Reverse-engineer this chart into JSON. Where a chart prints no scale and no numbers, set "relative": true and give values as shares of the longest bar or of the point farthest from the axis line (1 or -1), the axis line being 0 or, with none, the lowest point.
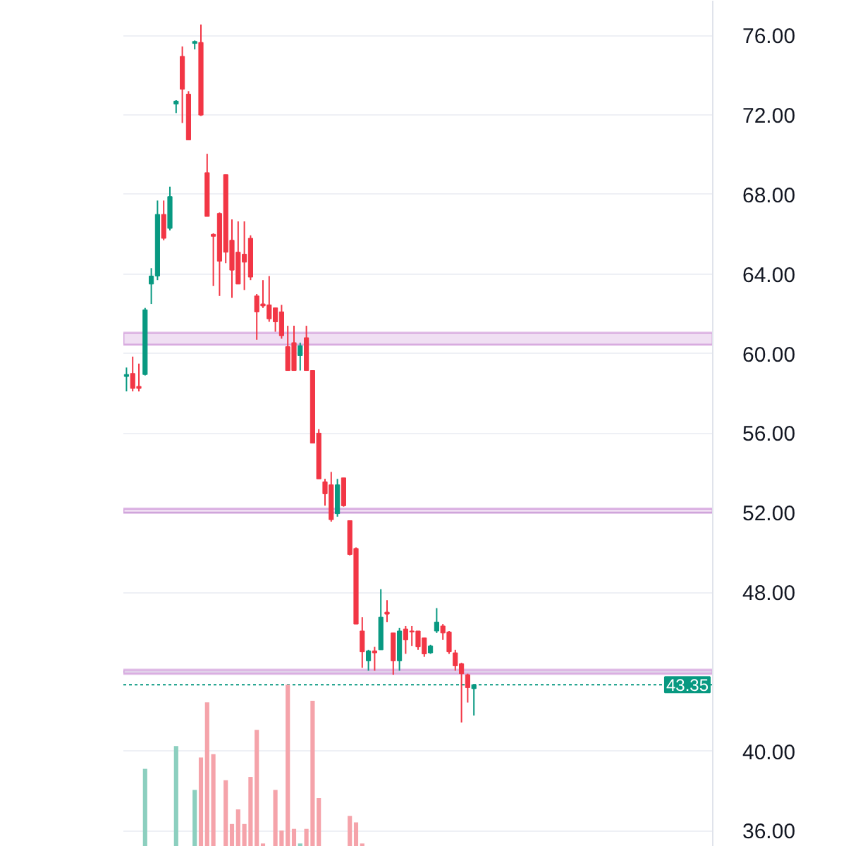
{
  "chart_data": [
    {
      "type": "candlestick",
      "categories": [
        null,
        null,
        null,
        null,
        null,
        null,
        null,
        null,
        null,
        null,
        null,
        null,
        null,
        null,
        null,
        null,
        null,
        null,
        null,
        null,
        null,
        null,
        null,
        null,
        null,
        null,
        null,
        null,
        null,
        null,
        null,
        null,
        null,
        null,
        null,
        null,
        null,
        null,
        null,
        null,
        null,
        null,
        null,
        null,
        null,
        null,
        null,
        null,
        null,
        null,
        null,
        null,
        null,
        null,
        null,
        null,
        null,
        null,
        null,
        null,
        null,
        null,
        null,
        null,
        null,
        null,
        null,
        null,
        null,
        null,
        null,
        null,
        null,
        null,
        null,
        null,
        null,
        null,
        null,
        null,
        null,
        null,
        null,
        null,
        null,
        null,
        null,
        null,
        null,
        null,
        null,
        null,
        null,
        null,
        null
      ],
      "ohlc": [
        [
          58.85,
          59.3,
          58.1,
          58.95
        ],
        [
          59.0,
          59.85,
          58.1,
          58.25
        ],
        [
          58.35,
          59.5,
          58.1,
          58.25
        ],
        [
          58.95,
          62.3,
          58.9,
          62.2
        ],
        [
          63.5,
          64.3,
          62.5,
          63.9
        ],
        [
          63.9,
          67.7,
          63.7,
          67.0
        ],
        [
          67.0,
          67.7,
          65.7,
          65.8
        ],
        [
          66.3,
          68.4,
          66.2,
          67.9
        ],
        [
          72.55,
          72.75,
          72.1,
          72.7
        ],
        [
          74.95,
          75.45,
          71.6,
          73.3
        ],
        [
          73.05,
          73.2,
          70.75,
          70.75
        ],
        [
          75.6,
          75.75,
          75.3,
          75.7
        ],
        [
          75.65,
          76.55,
          71.95,
          72.0
        ],
        [
          69.1,
          70.05,
          66.9,
          66.9
        ],
        [
          66.0,
          66.05,
          63.4,
          65.9
        ],
        [
          67.05,
          67.1,
          62.9,
          64.65
        ],
        [
          69.0,
          69.0,
          64.55,
          65.1
        ],
        [
          65.7,
          66.75,
          62.8,
          64.2
        ],
        [
          65.1,
          66.65,
          63.5,
          63.5
        ],
        [
          65.0,
          66.65,
          63.2,
          64.6
        ],
        [
          65.8,
          65.95,
          63.7,
          63.85
        ],
        [
          62.9,
          63.0,
          60.7,
          62.1
        ],
        [
          62.5,
          63.7,
          62.3,
          62.4
        ],
        [
          62.45,
          63.9,
          61.6,
          61.75
        ],
        [
          62.3,
          62.3,
          61.1,
          61.6
        ],
        [
          62.1,
          62.45,
          60.75,
          60.9
        ],
        [
          60.35,
          61.4,
          59.15,
          59.15
        ],
        [
          60.55,
          61.4,
          59.15,
          59.15
        ],
        [
          59.9,
          60.55,
          59.15,
          60.4
        ],
        [
          60.8,
          61.4,
          59.15,
          59.15
        ],
        [
          59.15,
          59.15,
          55.5,
          55.5
        ],
        [
          56.0,
          56.2,
          53.7,
          53.7
        ],
        [
          53.55,
          53.7,
          52.35,
          52.95
        ],
        [
          53.4,
          54.05,
          51.55,
          51.65
        ],
        [
          51.95,
          53.7,
          51.8,
          53.4
        ],
        [
          53.75,
          53.75,
          52.3,
          52.35
        ],
        [
          51.6,
          51.6,
          49.85,
          49.9
        ],
        [
          50.2,
          50.25,
          46.4,
          46.4
        ],
        [
          46.05,
          46.75,
          44.2,
          45.0
        ],
        [
          44.55,
          45.1,
          44.05,
          45.05
        ],
        [
          45.05,
          45.25,
          44.05,
          44.95
        ],
        [
          45.1,
          48.15,
          45.1,
          46.75
        ],
        [
          47.0,
          47.6,
          46.5,
          46.9
        ],
        [
          45.95,
          45.95,
          43.85,
          44.55
        ],
        [
          44.55,
          46.2,
          44.05,
          46.05
        ],
        [
          46.15,
          46.3,
          44.9,
          45.6
        ],
        [
          46.05,
          46.3,
          45.3,
          46.0
        ],
        [
          46.05,
          46.05,
          45.1,
          45.25
        ],
        [
          45.7,
          45.7,
          44.75,
          44.9
        ],
        [
          44.95,
          45.35,
          44.9,
          45.3
        ],
        [
          46.05,
          47.2,
          45.95,
          46.5
        ],
        [
          46.3,
          46.4,
          45.6,
          45.95
        ],
        [
          46.0,
          46.05,
          44.9,
          45.0
        ],
        [
          44.95,
          45.1,
          44.05,
          44.3
        ],
        [
          44.4,
          44.45,
          41.45,
          43.9
        ],
        [
          43.85,
          43.9,
          42.45,
          43.2
        ],
        [
          43.15,
          43.35,
          41.8,
          43.35
        ],
        null,
        null,
        null,
        null,
        null,
        null,
        null,
        null,
        null,
        null,
        null,
        null,
        null,
        null,
        null,
        null,
        null,
        null,
        null,
        null,
        null,
        null,
        null,
        null,
        null,
        null,
        null,
        null,
        null,
        null,
        null,
        null,
        null,
        null,
        null,
        null,
        null,
        null
      ],
      "colors": [
        "#089981",
        "#f23645",
        "#f23645",
        "#089981",
        "#089981",
        "#089981",
        "#f23645",
        "#089981",
        "#089981",
        "#f23645",
        "#f23645",
        "#089981",
        "#f23645",
        "#f23645",
        "#f23645",
        "#f23645",
        "#f23645",
        "#f23645",
        "#f23645",
        "#f23645",
        "#f23645",
        "#f23645",
        "#f23645",
        "#f23645",
        "#f23645",
        "#f23645",
        "#f23645",
        "#f23645",
        "#089981",
        "#f23645",
        "#f23645",
        "#f23645",
        "#f23645",
        "#f23645",
        "#089981",
        "#f23645",
        "#f23645",
        "#f23645",
        "#f23645",
        "#089981",
        "#f23645",
        "#089981",
        "#f23645",
        "#f23645",
        "#089981",
        "#f23645",
        "#f23645",
        "#f23645",
        "#f23645",
        "#089981",
        "#089981",
        "#f23645",
        "#f23645",
        "#f23645",
        "#f23645",
        "#f23645",
        "#089981",
        null,
        null,
        null,
        null,
        null,
        null,
        null,
        null,
        null,
        null,
        null,
        null,
        null,
        null,
        null,
        null,
        null,
        null,
        null,
        null,
        null,
        null,
        null,
        null,
        null,
        null,
        null,
        null,
        null,
        null,
        null,
        null,
        null,
        null,
        null,
        null,
        null,
        null
      ],
      "ylim": [
        35.2,
        77.75
      ],
      "yticks": [
        {
          "value": 36,
          "label": "36.00"
        },
        {
          "value": 40,
          "label": "40.00"
        },
        {
          "value": 44,
          "label": null
        },
        {
          "value": 48,
          "label": "48.00"
        },
        {
          "value": 52,
          "label": "52.00"
        },
        {
          "value": 56,
          "label": "56.00"
        },
        {
          "value": 60,
          "label": "60.00"
        },
        {
          "value": 64,
          "label": "64.00"
        },
        {
          "value": 68,
          "label": "68.00"
        },
        {
          "value": 72,
          "label": "72.00"
        },
        {
          "value": 76,
          "label": "76.00"
        }
      ],
      "tick_labels": "y",
      "grid": "y",
      "bands": [
        {
          "axis": "y",
          "from": 60.45,
          "to": 61.05,
          "color": "#9c27b0"
        },
        {
          "axis": "y",
          "from": 52.0,
          "to": 52.2,
          "color": "#9c27b0"
        },
        {
          "axis": "y",
          "from": 43.9,
          "to": 44.1,
          "color": "#9c27b0"
        }
      ],
      "ref_lines": [
        {
          "axis": "y",
          "value": 43.35,
          "label": "43.35",
          "color": "#089981",
          "line_style": "dotted"
        }
      ]
    },
    {
      "type": "bar",
      "relative": true,
      "categories": [
        null,
        null,
        null,
        null,
        null,
        null,
        null,
        null,
        null,
        null,
        null,
        null,
        null,
        null,
        null,
        null,
        null,
        null,
        null,
        null,
        null,
        null,
        null,
        null,
        null,
        null,
        null,
        null,
        null,
        null,
        null,
        null,
        null,
        null,
        null,
        null,
        null,
        null,
        null,
        null,
        null,
        null,
        null,
        null,
        null,
        null,
        null,
        null,
        null,
        null,
        null,
        null,
        null,
        null,
        null,
        null,
        null,
        null,
        null,
        null,
        null,
        null,
        null,
        null,
        null,
        null,
        null,
        null,
        null,
        null,
        null,
        null,
        null,
        null,
        null,
        null,
        null,
        null,
        null,
        null,
        null,
        null,
        null,
        null,
        null,
        null,
        null,
        null,
        null,
        null,
        null,
        null,
        null,
        null,
        null
      ],
      "values": [
        null,
        null,
        null,
        0.48,
        null,
        null,
        null,
        null,
        0.62,
        null,
        null,
        0.35,
        0.55,
        0.89,
        0.57,
        null,
        0.41,
        0.14,
        0.23,
        0.14,
        0.43,
        0.72,
        0.02,
        null,
        0.35,
        0.1,
        1,
        0.11,
        0.02,
        0.11,
        0.9,
        0.3,
        null,
        null,
        null,
        null,
        0.19,
        0.15,
        0.02,
        null,
        null,
        null,
        null,
        null,
        null,
        null,
        null,
        null,
        null,
        null,
        null,
        null,
        null,
        null,
        null,
        null,
        null,
        null,
        null,
        null,
        null,
        null,
        null,
        null,
        null,
        null,
        null,
        null,
        null,
        null,
        null,
        null,
        null,
        null,
        null,
        null,
        null,
        null,
        null,
        null,
        null,
        null,
        null,
        null,
        null,
        null,
        null,
        null,
        null,
        null,
        null,
        null,
        null,
        null,
        null
      ],
      "colors": [
        "#8ccfbf",
        "#f5a3aa",
        "#f5a3aa",
        "#8ccfbf",
        "#8ccfbf",
        "#8ccfbf",
        "#f5a3aa",
        "#8ccfbf",
        "#8ccfbf",
        "#f5a3aa",
        "#f5a3aa",
        "#8ccfbf",
        "#f5a3aa",
        "#f5a3aa",
        "#f5a3aa",
        "#f5a3aa",
        "#f5a3aa",
        "#f5a3aa",
        "#f5a3aa",
        "#f5a3aa",
        "#f5a3aa",
        "#f5a3aa",
        "#f5a3aa",
        "#f5a3aa",
        "#f5a3aa",
        "#f5a3aa",
        "#f5a3aa",
        "#f5a3aa",
        "#8ccfbf",
        "#f5a3aa",
        "#f5a3aa",
        "#f5a3aa",
        "#f5a3aa",
        "#f5a3aa",
        "#8ccfbf",
        "#f5a3aa",
        "#f5a3aa",
        "#f5a3aa",
        "#f5a3aa",
        "#8ccfbf",
        "#f5a3aa",
        "#8ccfbf",
        "#f5a3aa",
        "#f5a3aa",
        "#8ccfbf",
        "#f5a3aa",
        "#f5a3aa",
        "#f5a3aa",
        "#f5a3aa",
        "#8ccfbf",
        "#8ccfbf",
        "#f5a3aa",
        "#f5a3aa",
        "#f5a3aa",
        "#f5a3aa",
        "#f5a3aa",
        "#8ccfbf",
        null,
        null,
        null,
        null,
        null,
        null,
        null,
        null,
        null,
        null,
        null,
        null,
        null,
        null,
        null,
        null,
        null,
        null,
        null,
        null,
        null,
        null,
        null,
        null,
        null,
        null,
        null,
        null,
        null,
        null,
        null,
        null,
        null,
        null,
        null,
        null,
        null,
        null
      ]
    }
  ]
}
